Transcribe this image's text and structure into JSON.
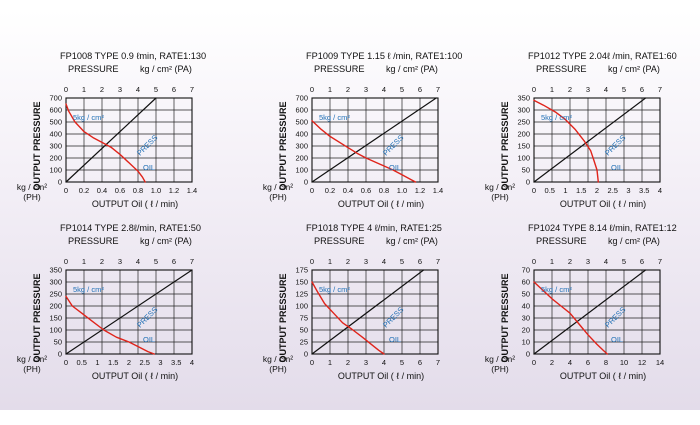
{
  "common": {
    "pressure_label": "PRESSURE",
    "pa_unit_label": "kg / cm² (PA)",
    "y_axis_label": "OUTPUT PRESSURE",
    "ph_unit_line1": "kg / cm²",
    "ph_unit_line2": "(PH)",
    "x_axis_label": "OUTPUT Oil  ( ℓ / min)",
    "annotation_5kg": "5kg / cm²",
    "series_press_label": "PRESS",
    "series_oil_label": "OIL",
    "press_color": "#111111",
    "oil_color": "#e0241b",
    "annotation_color": "#1f6fb5"
  },
  "chart_data": [
    {
      "type": "line",
      "title": "FP1008 TYPE  0.9  ℓmin, RATE1:130",
      "top_axis": {
        "ticks": [
          "0",
          "1",
          "2",
          "3",
          "4",
          "5",
          "6",
          "7"
        ],
        "range": [
          0,
          7
        ]
      },
      "x": {
        "ticks": [
          "0",
          "0.2",
          "0.4",
          "0.6",
          "0.8",
          "1.0",
          "1.2",
          "1.4"
        ],
        "range": [
          0,
          1.4
        ]
      },
      "y": {
        "ticks": [
          "0",
          "100",
          "200",
          "300",
          "400",
          "500",
          "600",
          "700"
        ],
        "range": [
          0,
          700
        ]
      },
      "series": [
        {
          "name": "PRESS",
          "points": [
            [
              0,
              0
            ],
            [
              5,
              700
            ]
          ]
        },
        {
          "name": "OIL",
          "points": [
            [
              0,
              650
            ],
            [
              0.03,
              590
            ],
            [
              0.1,
              500
            ],
            [
              0.2,
              420
            ],
            [
              0.3,
              370
            ],
            [
              0.4,
              330
            ],
            [
              0.5,
              290
            ],
            [
              0.6,
              230
            ],
            [
              0.7,
              160
            ],
            [
              0.8,
              90
            ],
            [
              0.85,
              40
            ],
            [
              0.88,
              0
            ]
          ]
        }
      ]
    },
    {
      "type": "line",
      "title": "FP1009 TYPE   1.15 ℓ /min, RATE1:100",
      "top_axis": {
        "ticks": [
          "0",
          "1",
          "2",
          "3",
          "4",
          "5",
          "6",
          "7"
        ],
        "range": [
          0,
          7
        ]
      },
      "x": {
        "ticks": [
          "0",
          "0.2",
          "0.4",
          "0.6",
          "0.8",
          "1.0",
          "1.2",
          "1.4"
        ],
        "range": [
          0,
          1.4
        ]
      },
      "y": {
        "ticks": [
          "0",
          "100",
          "200",
          "300",
          "400",
          "500",
          "600",
          "700"
        ],
        "range": [
          0,
          700
        ]
      },
      "series": [
        {
          "name": "PRESS",
          "points": [
            [
              0,
              0
            ],
            [
              6.9,
              700
            ]
          ]
        },
        {
          "name": "OIL",
          "points": [
            [
              0,
              510
            ],
            [
              0.1,
              440
            ],
            [
              0.2,
              380
            ],
            [
              0.35,
              310
            ],
            [
              0.5,
              240
            ],
            [
              0.6,
              200
            ],
            [
              0.75,
              150
            ],
            [
              0.9,
              100
            ],
            [
              1.0,
              60
            ],
            [
              1.1,
              20
            ],
            [
              1.15,
              0
            ]
          ]
        }
      ]
    },
    {
      "type": "line",
      "title": "FP1012 TYPE   2.04ℓ /min, RATE1:60",
      "top_axis": {
        "ticks": [
          "0",
          "1",
          "2",
          "3",
          "4",
          "5",
          "6",
          "7"
        ],
        "range": [
          0,
          7
        ]
      },
      "x": {
        "ticks": [
          "0",
          "0.5",
          "1",
          "1.5",
          "2",
          "2.5",
          "3",
          "3.5",
          "4"
        ],
        "range": [
          0,
          4
        ]
      },
      "y": {
        "ticks": [
          "0",
          "50",
          "100",
          "150",
          "200",
          "250",
          "300",
          "350"
        ],
        "range": [
          0,
          350
        ]
      },
      "series": [
        {
          "name": "PRESS",
          "points": [
            [
              0,
              0
            ],
            [
              6.2,
              350
            ]
          ]
        },
        {
          "name": "OIL",
          "points": [
            [
              0,
              340
            ],
            [
              0.3,
              320
            ],
            [
              0.7,
              290
            ],
            [
              1.0,
              260
            ],
            [
              1.3,
              220
            ],
            [
              1.6,
              170
            ],
            [
              1.8,
              130
            ],
            [
              1.9,
              90
            ],
            [
              2.0,
              50
            ],
            [
              2.04,
              0
            ]
          ]
        }
      ]
    },
    {
      "type": "line",
      "title": "FP1014 TYPE  2.8ℓ/min, RATE1:50",
      "top_axis": {
        "ticks": [
          "0",
          "1",
          "2",
          "3",
          "4",
          "5",
          "6",
          "7"
        ],
        "range": [
          0,
          7
        ]
      },
      "x": {
        "ticks": [
          "0",
          "0.5",
          "1",
          "1.5",
          "2",
          "2.5",
          "3",
          "3.5",
          "4"
        ],
        "range": [
          0,
          4
        ]
      },
      "y": {
        "ticks": [
          "0",
          "50",
          "100",
          "150",
          "200",
          "250",
          "300",
          "350"
        ],
        "range": [
          0,
          350
        ]
      },
      "series": [
        {
          "name": "PRESS",
          "points": [
            [
              0,
              0
            ],
            [
              7,
              350
            ]
          ]
        },
        {
          "name": "OIL",
          "points": [
            [
              0,
              240
            ],
            [
              0.2,
              200
            ],
            [
              0.5,
              170
            ],
            [
              0.8,
              140
            ],
            [
              1.2,
              100
            ],
            [
              1.6,
              70
            ],
            [
              2.0,
              50
            ],
            [
              2.3,
              30
            ],
            [
              2.6,
              10
            ],
            [
              2.8,
              0
            ]
          ]
        }
      ]
    },
    {
      "type": "line",
      "title": "FP1018 TYPE   4  ℓ/min, RATE1:25",
      "top_axis": {
        "ticks": [
          "0",
          "1",
          "2",
          "3",
          "4",
          "5",
          "6",
          "7"
        ],
        "range": [
          0,
          7
        ]
      },
      "x": {
        "ticks": [
          "0",
          "1",
          "2",
          "3",
          "4",
          "5",
          "6",
          "7"
        ],
        "range": [
          0,
          7
        ]
      },
      "y": {
        "ticks": [
          "0",
          "25",
          "50",
          "75",
          "100",
          "125",
          "150",
          "175"
        ],
        "range": [
          0,
          175
        ]
      },
      "series": [
        {
          "name": "PRESS",
          "points": [
            [
              0,
              0
            ],
            [
              6.2,
              175
            ]
          ]
        },
        {
          "name": "OIL",
          "points": [
            [
              0,
              150
            ],
            [
              0.3,
              130
            ],
            [
              0.7,
              105
            ],
            [
              1.2,
              85
            ],
            [
              1.7,
              65
            ],
            [
              2.2,
              52
            ],
            [
              2.8,
              35
            ],
            [
              3.3,
              20
            ],
            [
              3.7,
              8
            ],
            [
              4.0,
              0
            ]
          ]
        }
      ]
    },
    {
      "type": "line",
      "title": "FP1024 TYPE   8.14 ℓ/min, RATE1:12",
      "top_axis": {
        "ticks": [
          "0",
          "1",
          "2",
          "3",
          "4",
          "5",
          "6",
          "7"
        ],
        "range": [
          0,
          7
        ]
      },
      "x": {
        "ticks": [
          "0",
          "2",
          "4",
          "6",
          "8",
          "10",
          "12",
          "14"
        ],
        "range": [
          0,
          14
        ]
      },
      "y": {
        "ticks": [
          "0",
          "10",
          "20",
          "30",
          "40",
          "50",
          "60",
          "70"
        ],
        "range": [
          0,
          70
        ]
      },
      "series": [
        {
          "name": "PRESS",
          "points": [
            [
              0,
              0
            ],
            [
              6.2,
              70
            ]
          ]
        },
        {
          "name": "OIL",
          "points": [
            [
              0,
              60
            ],
            [
              1,
              53
            ],
            [
              2,
              46
            ],
            [
              3,
              40
            ],
            [
              4,
              34
            ],
            [
              5,
              25
            ],
            [
              6,
              16
            ],
            [
              7,
              8
            ],
            [
              7.7,
              3
            ],
            [
              8.14,
              0
            ]
          ]
        }
      ]
    }
  ]
}
